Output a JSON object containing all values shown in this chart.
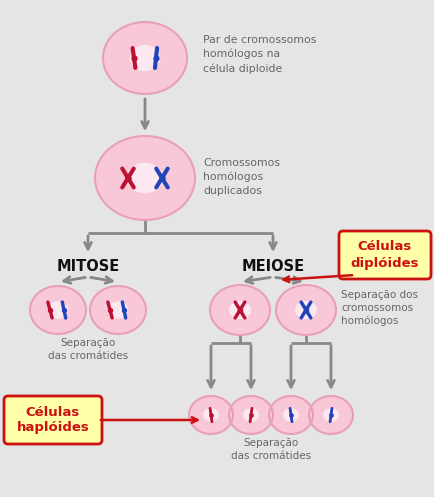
{
  "bg_color": "#e5e5e5",
  "cell_fill": "#f9c8d8",
  "cell_fill_white": "#fce8f0",
  "cell_edge": "#e8a0b8",
  "red_chr": "#bb1133",
  "blue_chr": "#2244bb",
  "arrow_color": "#888888",
  "text_color": "#666666",
  "title_color": "#111111",
  "label_mitose": "MITOSE",
  "label_meiose": "MEIOSE",
  "text_top": "Par de cromossomos\nhomólogos na\ncélula diploide",
  "text_mid": "Cromossomos\nhomólogos\nduplicados",
  "text_sep_mit": "Separação\ndas cromátides",
  "text_sep_mei1": "Separação dos\ncromossomos\nhomólogos",
  "text_sep_mei2": "Separação\ndas cromátides",
  "box_diploides": "Células\ndiplóides",
  "box_haploides": "Células\nhaplóides",
  "box_fill": "#ffffaa",
  "box_edge_color": "#cc1111",
  "box_text_color": "#cc1111"
}
